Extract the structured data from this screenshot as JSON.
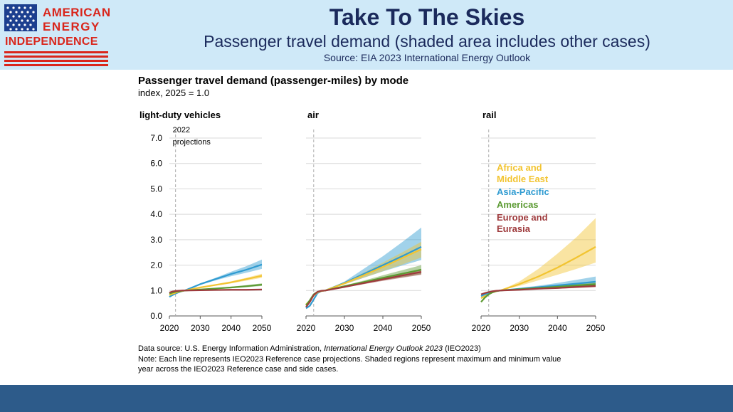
{
  "header": {
    "title": "Take To The Skies",
    "subtitle": "Passenger travel demand (shaded area includes other cases)",
    "source": "Source: EIA 2023 International Energy Outlook"
  },
  "logo": {
    "line1": "AMERICAN",
    "line2": "ENERGY",
    "line3": "INDEPENDENCE"
  },
  "chart_data": {
    "type": "line",
    "title": "Passenger travel demand (passenger-miles) by mode",
    "subtitle": "index, 2025 = 1.0",
    "y_ticks": [
      "0.0",
      "1.0",
      "2.0",
      "3.0",
      "4.0",
      "5.0",
      "6.0",
      "7.0"
    ],
    "x_ticks": [
      "2020",
      "2030",
      "2040",
      "2050"
    ],
    "ylim": [
      0,
      7
    ],
    "xlim": [
      2020,
      2050
    ],
    "marker": {
      "year": 2022,
      "label_line1": "2022",
      "label_line2": "projections"
    },
    "legend": [
      {
        "name": "Africa and\nMiddle East",
        "lines": [
          "Africa and",
          "Middle East"
        ],
        "color": "#f2c431"
      },
      {
        "name": "Asia-Pacific",
        "lines": [
          "Asia-Pacific"
        ],
        "color": "#2f9bd1"
      },
      {
        "name": "Americas",
        "lines": [
          "Americas"
        ],
        "color": "#5b9a32"
      },
      {
        "name": "Europe and\nEurasia",
        "lines": [
          "Europe and",
          "Eurasia"
        ],
        "color": "#9e3a3c"
      }
    ],
    "years": [
      2020,
      2021,
      2022,
      2023,
      2024,
      2025,
      2030,
      2035,
      2040,
      2045,
      2050
    ],
    "panels": [
      {
        "title": "light-duty vehicles",
        "series": [
          {
            "name": "Asia-Pacific",
            "values": [
              0.75,
              0.82,
              0.88,
              0.93,
              0.97,
              1.0,
              1.25,
              1.45,
              1.65,
              1.82,
              2.02
            ],
            "band_low": [
              0.75,
              0.82,
              0.88,
              0.93,
              0.97,
              1.0,
              1.22,
              1.4,
              1.56,
              1.7,
              1.85
            ],
            "band_high": [
              0.75,
              0.82,
              0.88,
              0.93,
              0.97,
              1.0,
              1.28,
              1.5,
              1.74,
              1.96,
              2.22
            ]
          },
          {
            "name": "Africa and Middle East",
            "values": [
              0.82,
              0.87,
              0.91,
              0.95,
              0.98,
              1.0,
              1.12,
              1.22,
              1.32,
              1.45,
              1.58
            ],
            "band_low": [
              0.82,
              0.87,
              0.91,
              0.95,
              0.98,
              1.0,
              1.1,
              1.19,
              1.28,
              1.39,
              1.5
            ],
            "band_high": [
              0.82,
              0.87,
              0.91,
              0.95,
              0.98,
              1.0,
              1.14,
              1.25,
              1.36,
              1.5,
              1.66
            ]
          },
          {
            "name": "Americas",
            "values": [
              0.88,
              0.92,
              0.95,
              0.97,
              0.99,
              1.0,
              1.04,
              1.08,
              1.12,
              1.17,
              1.23
            ],
            "band_low": [
              0.88,
              0.92,
              0.95,
              0.97,
              0.99,
              1.0,
              1.03,
              1.06,
              1.09,
              1.13,
              1.18
            ],
            "band_high": [
              0.88,
              0.92,
              0.95,
              0.97,
              0.99,
              1.0,
              1.05,
              1.1,
              1.15,
              1.21,
              1.28
            ]
          },
          {
            "name": "Europe and Eurasia",
            "values": [
              0.92,
              0.96,
              0.98,
              0.99,
              1.0,
              1.0,
              1.01,
              1.02,
              1.03,
              1.03,
              1.04
            ],
            "band_low": [
              0.92,
              0.96,
              0.98,
              0.99,
              1.0,
              1.0,
              1.0,
              1.01,
              1.01,
              1.01,
              1.02
            ],
            "band_high": [
              0.92,
              0.96,
              0.98,
              0.99,
              1.0,
              1.0,
              1.02,
              1.03,
              1.05,
              1.05,
              1.06
            ]
          }
        ]
      },
      {
        "title": "air",
        "series": [
          {
            "name": "Asia-Pacific",
            "values": [
              0.3,
              0.4,
              0.65,
              0.9,
              0.98,
              1.0,
              1.3,
              1.65,
              2.0,
              2.35,
              2.72
            ],
            "band_low": [
              0.3,
              0.4,
              0.65,
              0.9,
              0.98,
              1.0,
              1.25,
              1.5,
              1.75,
              1.98,
              2.2
            ],
            "band_high": [
              0.3,
              0.4,
              0.65,
              0.9,
              0.98,
              1.0,
              1.35,
              1.85,
              2.35,
              2.9,
              3.48
            ]
          },
          {
            "name": "Africa and Middle East",
            "values": [
              0.45,
              0.6,
              0.8,
              0.93,
              0.98,
              1.0,
              1.28,
              1.6,
              1.93,
              2.28,
              2.62
            ],
            "band_low": [
              0.45,
              0.6,
              0.8,
              0.93,
              0.98,
              1.0,
              1.24,
              1.5,
              1.76,
              2.02,
              2.3
            ],
            "band_high": [
              0.45,
              0.6,
              0.8,
              0.93,
              0.98,
              1.0,
              1.32,
              1.7,
              2.1,
              2.5,
              2.92
            ]
          },
          {
            "name": "Americas",
            "values": [
              0.42,
              0.62,
              0.85,
              0.95,
              0.99,
              1.0,
              1.17,
              1.33,
              1.5,
              1.66,
              1.82
            ],
            "band_low": [
              0.42,
              0.62,
              0.85,
              0.95,
              0.99,
              1.0,
              1.14,
              1.27,
              1.4,
              1.52,
              1.64
            ],
            "band_high": [
              0.42,
              0.62,
              0.85,
              0.95,
              0.99,
              1.0,
              1.2,
              1.39,
              1.6,
              1.8,
              2.0
            ]
          },
          {
            "name": "Europe and Eurasia",
            "values": [
              0.35,
              0.55,
              0.82,
              0.95,
              0.99,
              1.0,
              1.14,
              1.29,
              1.44,
              1.59,
              1.73
            ],
            "band_low": [
              0.35,
              0.55,
              0.82,
              0.95,
              0.99,
              1.0,
              1.12,
              1.25,
              1.38,
              1.5,
              1.62
            ],
            "band_high": [
              0.35,
              0.55,
              0.82,
              0.95,
              0.99,
              1.0,
              1.16,
              1.33,
              1.5,
              1.67,
              1.84
            ]
          }
        ]
      },
      {
        "title": "rail",
        "series": [
          {
            "name": "Africa and Middle East",
            "values": [
              0.7,
              0.78,
              0.86,
              0.93,
              0.97,
              1.0,
              1.25,
              1.55,
              1.9,
              2.3,
              2.72
            ],
            "band_low": [
              0.7,
              0.78,
              0.86,
              0.93,
              0.97,
              1.0,
              1.18,
              1.4,
              1.62,
              1.85,
              2.1
            ],
            "band_high": [
              0.7,
              0.78,
              0.86,
              0.93,
              0.97,
              1.0,
              1.35,
              1.85,
              2.45,
              3.1,
              3.85
            ]
          },
          {
            "name": "Asia-Pacific",
            "values": [
              0.78,
              0.85,
              0.9,
              0.95,
              0.98,
              1.0,
              1.07,
              1.13,
              1.2,
              1.27,
              1.35
            ],
            "band_low": [
              0.78,
              0.85,
              0.9,
              0.95,
              0.98,
              1.0,
              1.04,
              1.08,
              1.12,
              1.16,
              1.2
            ],
            "band_high": [
              0.78,
              0.85,
              0.9,
              0.95,
              0.98,
              1.0,
              1.1,
              1.19,
              1.3,
              1.42,
              1.55
            ]
          },
          {
            "name": "Americas",
            "values": [
              0.55,
              0.72,
              0.85,
              0.93,
              0.98,
              1.0,
              1.05,
              1.1,
              1.15,
              1.2,
              1.25
            ],
            "band_low": [
              0.55,
              0.72,
              0.85,
              0.93,
              0.98,
              1.0,
              1.03,
              1.06,
              1.09,
              1.12,
              1.15
            ],
            "band_high": [
              0.55,
              0.72,
              0.85,
              0.93,
              0.98,
              1.0,
              1.07,
              1.14,
              1.21,
              1.28,
              1.35
            ]
          },
          {
            "name": "Europe and Eurasia",
            "values": [
              0.85,
              0.9,
              0.94,
              0.97,
              0.99,
              1.0,
              1.03,
              1.07,
              1.1,
              1.14,
              1.18
            ],
            "band_low": [
              0.85,
              0.9,
              0.94,
              0.97,
              0.99,
              1.0,
              1.02,
              1.05,
              1.07,
              1.1,
              1.13
            ],
            "band_high": [
              0.85,
              0.9,
              0.94,
              0.97,
              0.99,
              1.0,
              1.04,
              1.09,
              1.13,
              1.18,
              1.23
            ]
          }
        ]
      }
    ],
    "notes": {
      "line1_prefix": "Data source: U.S. Energy Information Administration, ",
      "line1_italic": "International Energy Outlook 2023",
      "line1_suffix": " (IEO2023)",
      "line2": "Note: Each line represents IEO2023 Reference case projections. Shaded regions represent maximum and minimum value",
      "line3": "year across the IEO2023 Reference case and side cases."
    }
  }
}
